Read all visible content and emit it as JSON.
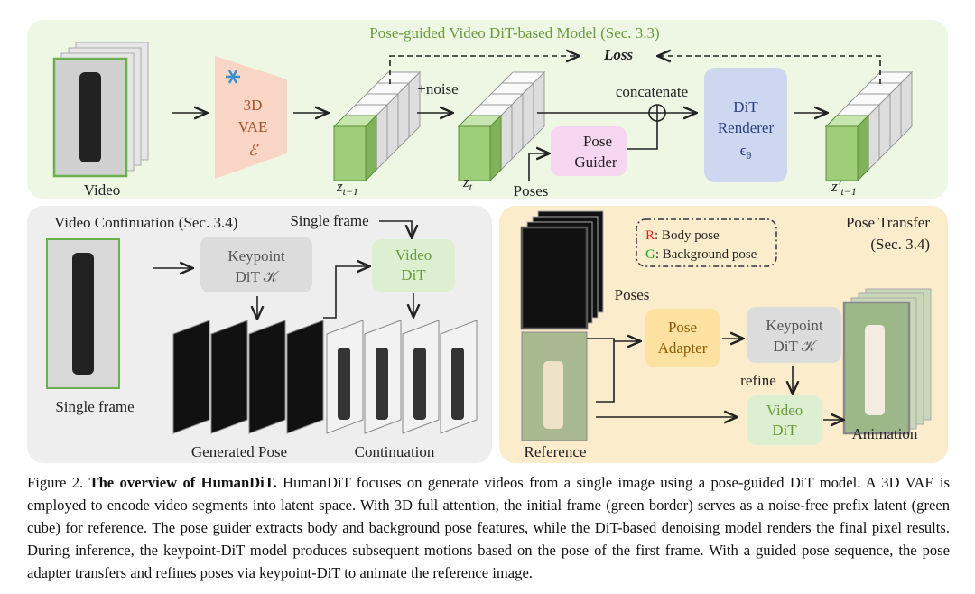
{
  "top_panel": {
    "title": "Pose-guided Video DiT-based Model (Sec. 3.3)",
    "loss": "Loss",
    "video_label": "Video",
    "vae": [
      "3D",
      "VAE",
      "ℰ"
    ],
    "noise": "+noise",
    "concatenate": "concatenate",
    "pose_guider": [
      "Pose",
      "Guider"
    ],
    "poses": "Poses",
    "renderer": [
      "DiT",
      "Renderer"
    ],
    "renderer_symbol": {
      "base": "ϵ",
      "sub": "θ"
    },
    "latents": [
      {
        "base": "z",
        "sub": "t−1"
      },
      {
        "base": "z",
        "sub": "t"
      },
      {
        "base": "z′",
        "sub": "t−1"
      }
    ]
  },
  "continuation_panel": {
    "title": "Video Continuation (Sec. 3.4)",
    "single_frame_input": "Single frame",
    "keypoint_dit": [
      "Keypoint",
      "DiT 𝒦"
    ],
    "video_dit": [
      "Video",
      "DiT"
    ],
    "single_frame_label": "Single frame",
    "generated_pose": "Generated Pose",
    "continuation": "Continuation"
  },
  "transfer_panel": {
    "title": [
      "Pose Transfer",
      "(Sec. 3.4)"
    ],
    "legend": [
      {
        "key": "R",
        "text": ": Body pose"
      },
      {
        "key": "G",
        "text": ": Background pose"
      }
    ],
    "poses": "Poses",
    "pose_adapter": [
      "Pose",
      "Adapter"
    ],
    "keypoint_dit": [
      "Keypoint",
      "DiT 𝒦"
    ],
    "refine": "refine",
    "video_dit": [
      "Video",
      "DiT"
    ],
    "reference": "Reference",
    "animation": "Animation"
  },
  "caption": {
    "label": "Figure 2.",
    "bold": "The overview of HumanDiT.",
    "text": "HumanDiT focuses on generate videos from a single image using a pose-guided DiT model. A 3D VAE is employed to encode video segments into latent space. With 3D full attention, the initial frame (green border) serves as a noise-free prefix latent (green cube) for reference. The pose guider extracts body and background pose features, while the DiT-based denoising model renders the final pixel results. During inference, the keypoint-DiT model produces subsequent motions based on the pose of the first frame. With a guided pose sequence, the pose adapter transfers and refines poses via keypoint-DiT to animate the reference image."
  }
}
